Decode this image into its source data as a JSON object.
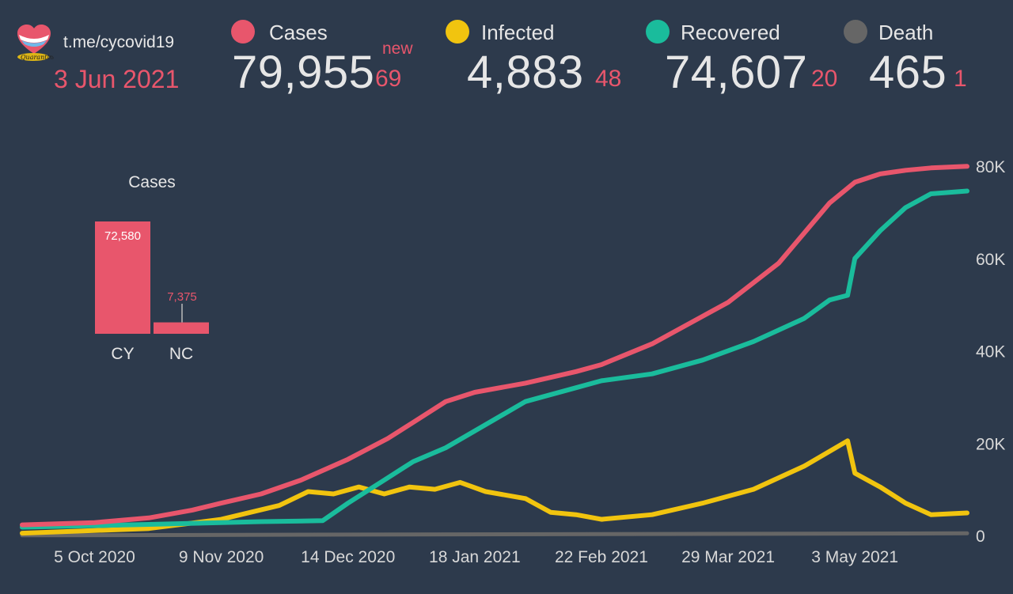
{
  "header": {
    "link": "t.me/cycovid19",
    "date": "3 Jun 2021",
    "new_label": "new"
  },
  "stats": [
    {
      "label": "Cases",
      "value": "79,955",
      "delta": "69",
      "color": "#e8566c"
    },
    {
      "label": "Infected",
      "value": "4,883",
      "delta": "48",
      "color": "#f1c40f"
    },
    {
      "label": "Recovered",
      "value": "74,607",
      "delta": "20",
      "color": "#1abc9c"
    },
    {
      "label": "Death",
      "value": "465",
      "delta": "1",
      "color": "#666666"
    }
  ],
  "chart_data": [
    {
      "type": "line",
      "x_ticks": [
        "5 Oct 2020",
        "9 Nov 2020",
        "14 Dec 2020",
        "18 Jan 2021",
        "22 Feb 2021",
        "29 Mar 2021",
        "3 May 2021"
      ],
      "y_ticks": [
        "0",
        "20K",
        "40K",
        "60K",
        "80K"
      ],
      "ylim": [
        0,
        80000
      ],
      "xlim": [
        "2020-09-15",
        "2021-06-03"
      ],
      "series": [
        {
          "name": "Cases",
          "color": "#e8566c",
          "x": [
            "2020-09-15",
            "2020-10-05",
            "2020-10-20",
            "2020-11-01",
            "2020-11-09",
            "2020-11-20",
            "2020-12-01",
            "2020-12-14",
            "2020-12-25",
            "2021-01-01",
            "2021-01-10",
            "2021-01-18",
            "2021-02-01",
            "2021-02-15",
            "2021-02-22",
            "2021-03-08",
            "2021-03-22",
            "2021-03-29",
            "2021-04-12",
            "2021-04-26",
            "2021-05-03",
            "2021-05-10",
            "2021-05-17",
            "2021-05-24",
            "2021-06-03"
          ],
          "y": [
            2300,
            2800,
            3800,
            5500,
            7000,
            9000,
            12000,
            16500,
            21000,
            24500,
            29000,
            31000,
            33000,
            35500,
            37000,
            41500,
            47500,
            50500,
            59000,
            72000,
            76500,
            78300,
            79100,
            79600,
            79955
          ]
        },
        {
          "name": "Infected",
          "color": "#f1c40f",
          "x": [
            "2020-09-15",
            "2020-10-20",
            "2020-11-09",
            "2020-11-25",
            "2020-12-03",
            "2020-12-10",
            "2020-12-17",
            "2020-12-24",
            "2020-12-31",
            "2021-01-07",
            "2021-01-14",
            "2021-01-21",
            "2021-02-01",
            "2021-02-08",
            "2021-02-15",
            "2021-02-22",
            "2021-03-08",
            "2021-03-22",
            "2021-04-05",
            "2021-04-19",
            "2021-05-01",
            "2021-05-03",
            "2021-05-10",
            "2021-05-17",
            "2021-05-24",
            "2021-06-03"
          ],
          "y": [
            500,
            1500,
            3500,
            6500,
            9500,
            9000,
            10500,
            9000,
            10500,
            10000,
            11500,
            9500,
            8000,
            5000,
            4500,
            3500,
            4500,
            7000,
            10000,
            15000,
            20500,
            13500,
            10500,
            7000,
            4500,
            4883
          ]
        },
        {
          "name": "Recovered",
          "color": "#1abc9c",
          "x": [
            "2020-09-15",
            "2020-10-20",
            "2020-11-20",
            "2020-12-07",
            "2020-12-14",
            "2020-12-24",
            "2021-01-01",
            "2021-01-10",
            "2021-01-21",
            "2021-02-01",
            "2021-02-15",
            "2021-02-22",
            "2021-03-08",
            "2021-03-22",
            "2021-04-05",
            "2021-04-19",
            "2021-04-26",
            "2021-05-01",
            "2021-05-03",
            "2021-05-10",
            "2021-05-17",
            "2021-05-24",
            "2021-06-03"
          ],
          "y": [
            1800,
            2400,
            3000,
            3200,
            7000,
            12000,
            16000,
            19000,
            24000,
            29000,
            32000,
            33500,
            35000,
            38000,
            42000,
            47000,
            51000,
            52000,
            60000,
            66000,
            71000,
            74000,
            74607
          ]
        },
        {
          "name": "Death",
          "color": "#666666",
          "x": [
            "2020-09-15",
            "2021-06-03"
          ],
          "y": [
            30,
            465
          ]
        }
      ]
    },
    {
      "type": "bar",
      "title": "Cases",
      "categories": [
        "CY",
        "NC"
      ],
      "values": [
        72580,
        7375
      ],
      "value_labels": [
        "72,580",
        "7,375"
      ],
      "color": "#e8566c"
    }
  ]
}
